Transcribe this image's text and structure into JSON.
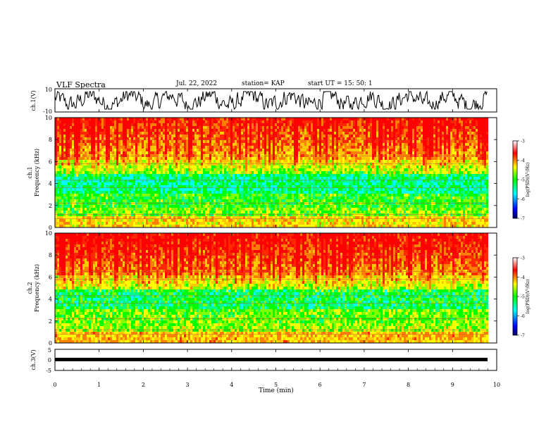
{
  "header": {
    "title": "VLF Spectra",
    "date": "Jul. 22, 2022",
    "station": "station= KAP",
    "start_ut": "start UT = 15: 50: 1"
  },
  "chart_data": [
    {
      "type": "line",
      "panel": "ch1-waveform",
      "ylabel": "ch.1(V)",
      "ylim": [
        -10,
        10
      ],
      "ytick_labels": [
        "10",
        "-10"
      ],
      "xlim": [
        0,
        10
      ]
    },
    {
      "type": "heatmap",
      "panel": "ch1-spectrogram",
      "ylabel_line1": "ch.1",
      "ylabel_line2": "Frequency (kHz)",
      "ylim": [
        0,
        10
      ],
      "yticks": [
        0,
        2,
        4,
        6,
        8,
        10
      ],
      "xlim": [
        0,
        9.83
      ]
    },
    {
      "type": "heatmap",
      "panel": "ch2-spectrogram",
      "ylabel_line1": "ch.2",
      "ylabel_line2": "Frequency (kHz)",
      "ylim": [
        0,
        10
      ],
      "yticks": [
        0,
        2,
        4,
        6,
        8,
        10
      ],
      "xlim": [
        0,
        9.83
      ]
    },
    {
      "type": "line",
      "panel": "ch3-waveform",
      "ylabel": "ch.3(V)",
      "ylim": [
        -5,
        5
      ],
      "ytick_labels": [
        "5",
        "0",
        "-5"
      ],
      "xlabel": "Time (min)",
      "xlim": [
        0,
        10
      ],
      "xticks": [
        0,
        1,
        2,
        3,
        4,
        5,
        6,
        7,
        8,
        9,
        10
      ]
    }
  ],
  "colorbar": {
    "label": "log(PSD)(V²/Hz)",
    "ticks": [
      -3,
      -4,
      -5,
      -6,
      -7
    ]
  },
  "colors": {
    "colormap": [
      "#000080",
      "#0000ff",
      "#00ffff",
      "#00ff00",
      "#ffff00",
      "#ff0000",
      "#ffffff"
    ],
    "line": "#000000"
  }
}
